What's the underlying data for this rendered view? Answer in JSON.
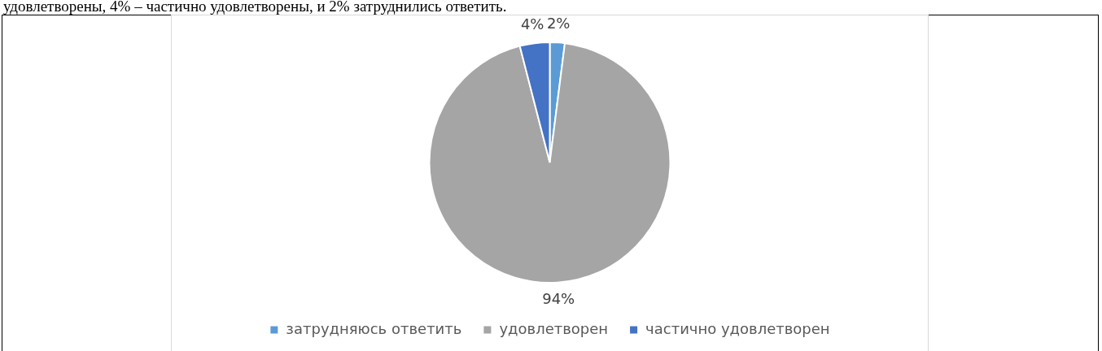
{
  "chart_data": {
    "type": "pie",
    "categories": [
      "затрудняюсь ответить",
      "удовлетворен",
      "частично удовлетворен"
    ],
    "values": [
      2,
      94,
      4
    ],
    "colors": [
      "#5b9bd5",
      "#a5a5a5",
      "#4472c4"
    ],
    "value_labels": [
      "2%",
      "94%",
      "4%"
    ],
    "legend": "bottom",
    "annotations": [
      "удовлетворены, 4% – частично удовлетворены, и 2% затруднились ответить."
    ]
  }
}
